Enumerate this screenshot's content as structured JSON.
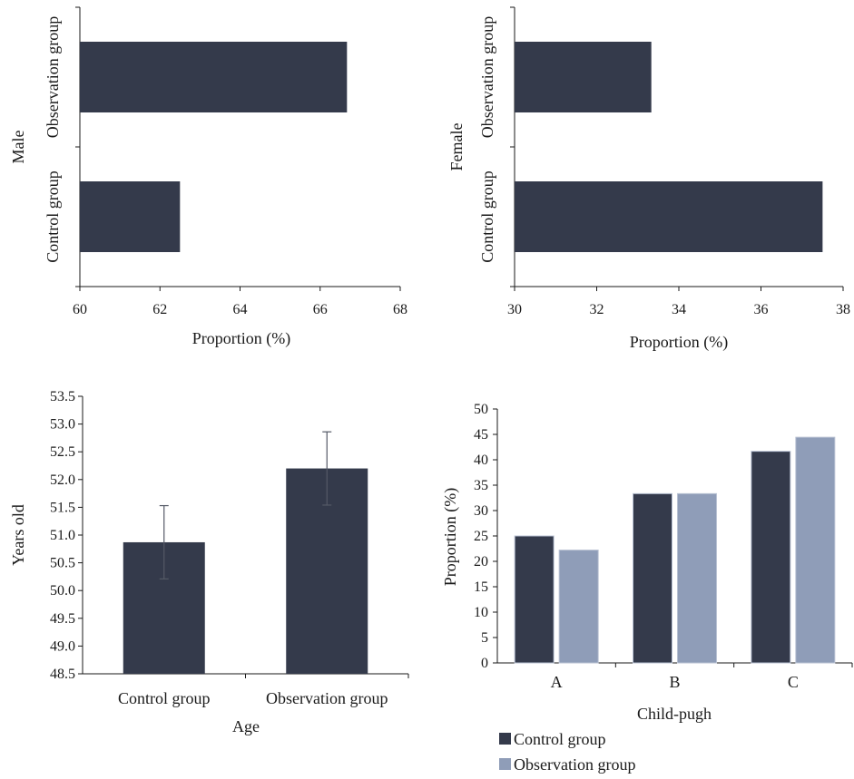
{
  "colors": {
    "control": "#343a4b",
    "observation": "#8f9db8",
    "axis": "#1a1a1a"
  },
  "chart_data": [
    {
      "type": "bar",
      "orientation": "horizontal",
      "categories": [
        "Control group",
        "Observation group"
      ],
      "values": [
        62.5,
        66.67
      ],
      "xlabel": "Proportion (%)",
      "ylabel": "Male",
      "xlim": [
        60,
        68
      ],
      "xticks": [
        "60",
        "62",
        "64",
        "66",
        "68"
      ]
    },
    {
      "type": "bar",
      "orientation": "horizontal",
      "categories": [
        "Control group",
        "Observation group"
      ],
      "values": [
        37.5,
        33.33
      ],
      "xlabel": "Proportion (%)",
      "ylabel": "Female",
      "xlim": [
        30,
        38
      ],
      "xticks": [
        "30",
        "32",
        "34",
        "36",
        "38"
      ]
    },
    {
      "type": "bar",
      "categories": [
        "Control group",
        "Observation group"
      ],
      "values": [
        50.87,
        52.2
      ],
      "errors": [
        0.66,
        0.66
      ],
      "xlabel": "Age",
      "ylabel": "Years old",
      "ylim": [
        48.5,
        53.5
      ],
      "yticks": [
        "48.5",
        "49.0",
        "49.5",
        "50.0",
        "50.5",
        "51.0",
        "51.5",
        "52.0",
        "52.5",
        "53.0",
        "53.5"
      ]
    },
    {
      "type": "bar",
      "categories": [
        "A",
        "B",
        "C"
      ],
      "series": [
        {
          "name": "Control group",
          "values": [
            25.0,
            33.33,
            41.67
          ]
        },
        {
          "name": "Observation group",
          "values": [
            22.22,
            33.33,
            44.44
          ]
        }
      ],
      "xlabel": "Child-pugh",
      "ylabel": "Proportion (%)",
      "ylim": [
        0,
        50
      ],
      "yticks": [
        "0",
        "5",
        "10",
        "15",
        "20",
        "25",
        "30",
        "35",
        "40",
        "45",
        "50"
      ],
      "legend": "bottom-left"
    }
  ]
}
